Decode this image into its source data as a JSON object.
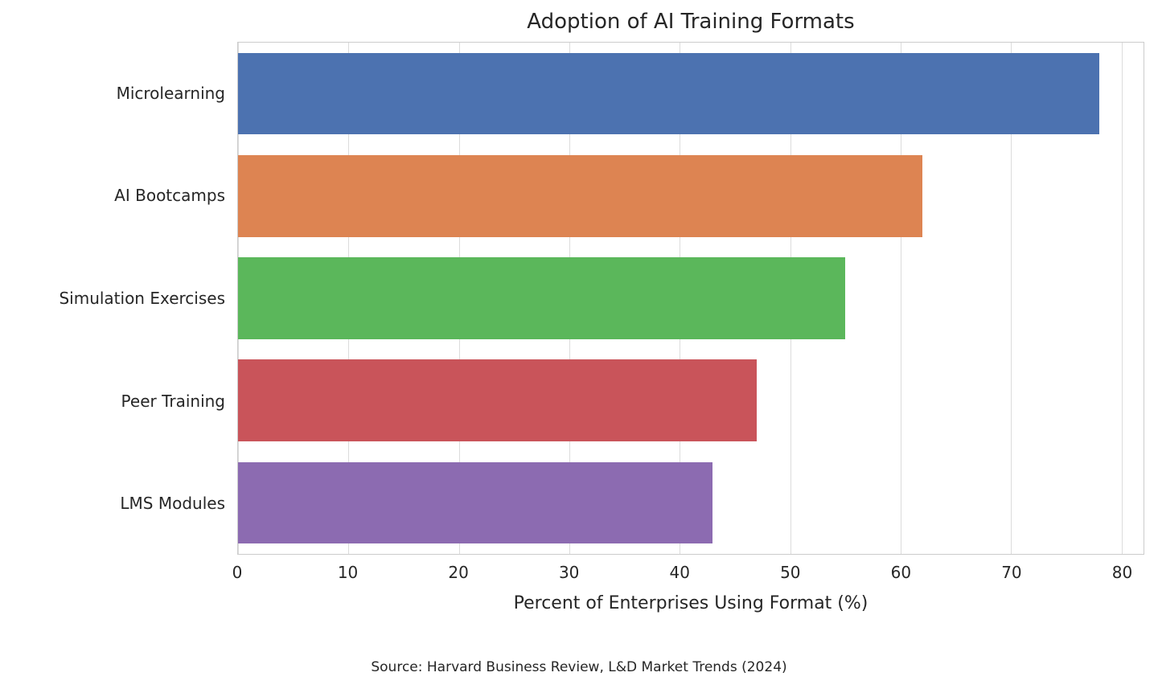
{
  "chart_data": {
    "type": "bar",
    "orientation": "horizontal",
    "title": "Adoption of AI Training Formats",
    "categories": [
      "Microlearning",
      "AI Bootcamps",
      "Simulation Exercises",
      "Peer Training",
      "LMS Modules"
    ],
    "values": [
      78,
      62,
      55,
      47,
      43
    ],
    "bar_colors": [
      "#4C72B0",
      "#DD8452",
      "#5BB75B",
      "#C9545A",
      "#8C6BB1"
    ],
    "xlabel": "Percent of Enterprises Using Format (%)",
    "ylabel": "",
    "xlim": [
      0,
      82
    ],
    "xticks": [
      0,
      10,
      20,
      30,
      40,
      50,
      60,
      70,
      80
    ],
    "grid": true,
    "grid_color": "#dcdcdc",
    "legend": "none",
    "source": "Source: Harvard Business Review, L&D Market Trends (2024)"
  }
}
